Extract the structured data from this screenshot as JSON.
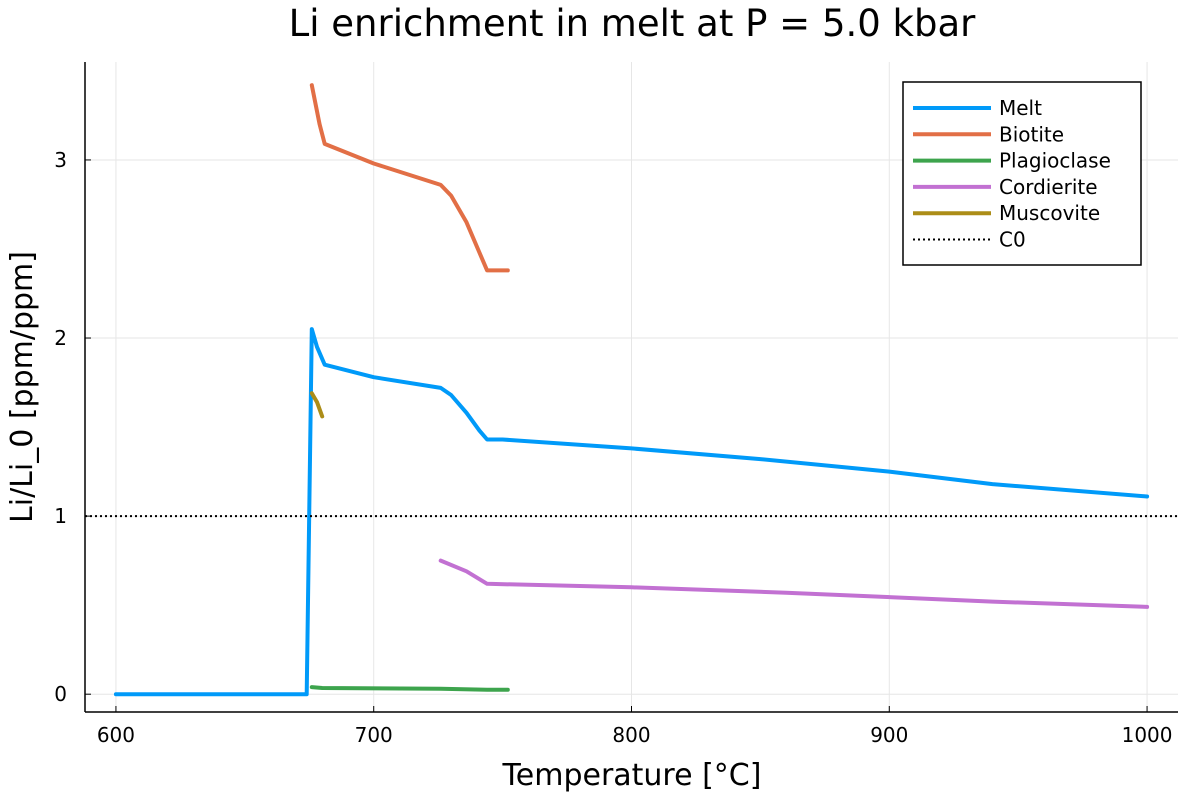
{
  "chart_data": {
    "type": "line",
    "title": "Li enrichment in melt at P = 5.0 kbar",
    "xlabel": "Temperature [°C]",
    "ylabel": "Li/Li_0 [ppm/ppm]",
    "xlim": [
      588,
      1012
    ],
    "ylim": [
      -0.1,
      3.55
    ],
    "xticks": [
      600,
      700,
      800,
      900,
      1000
    ],
    "xtick_labels": [
      "600",
      "700",
      "800",
      "900",
      "1000"
    ],
    "yticks": [
      0,
      1,
      2,
      3
    ],
    "ytick_labels": [
      "0",
      "1",
      "2",
      "3"
    ],
    "grid": true,
    "legend_position": "top-right",
    "series": [
      {
        "name": "Melt",
        "color": "#009AF9",
        "style": "solid",
        "points": [
          [
            600,
            0
          ],
          [
            674,
            0
          ],
          [
            676,
            2.05
          ],
          [
            678,
            1.95
          ],
          [
            681,
            1.85
          ],
          [
            700,
            1.78
          ],
          [
            726,
            1.72
          ],
          [
            730,
            1.68
          ],
          [
            736,
            1.58
          ],
          [
            741,
            1.48
          ],
          [
            744,
            1.43
          ],
          [
            750,
            1.43
          ],
          [
            800,
            1.38
          ],
          [
            850,
            1.32
          ],
          [
            900,
            1.25
          ],
          [
            940,
            1.18
          ],
          [
            1000,
            1.11
          ]
        ]
      },
      {
        "name": "Biotite",
        "color": "#E26F46",
        "style": "solid",
        "points": [
          [
            676,
            3.42
          ],
          [
            679,
            3.2
          ],
          [
            681,
            3.09
          ],
          [
            700,
            2.98
          ],
          [
            726,
            2.86
          ],
          [
            730,
            2.8
          ],
          [
            736,
            2.65
          ],
          [
            741,
            2.48
          ],
          [
            744,
            2.38
          ],
          [
            752,
            2.38
          ]
        ]
      },
      {
        "name": "Plagioclase",
        "color": "#3DA44D",
        "style": "solid",
        "points": [
          [
            676,
            0.04
          ],
          [
            680,
            0.035
          ],
          [
            726,
            0.03
          ],
          [
            744,
            0.025
          ],
          [
            752,
            0.025
          ]
        ]
      },
      {
        "name": "Cordierite",
        "color": "#C271D2",
        "style": "solid",
        "points": [
          [
            726,
            0.75
          ],
          [
            736,
            0.69
          ],
          [
            744,
            0.62
          ],
          [
            800,
            0.6
          ],
          [
            860,
            0.57
          ],
          [
            940,
            0.52
          ],
          [
            1000,
            0.49
          ]
        ]
      },
      {
        "name": "Muscovite",
        "color": "#AC8D18",
        "style": "solid",
        "points": [
          [
            676,
            1.69
          ],
          [
            678,
            1.64
          ],
          [
            680,
            1.56
          ]
        ]
      },
      {
        "name": "C0",
        "color": "#000000",
        "style": "dotted",
        "points": [
          [
            588,
            1.0
          ],
          [
            1012,
            1.0
          ]
        ]
      }
    ]
  }
}
